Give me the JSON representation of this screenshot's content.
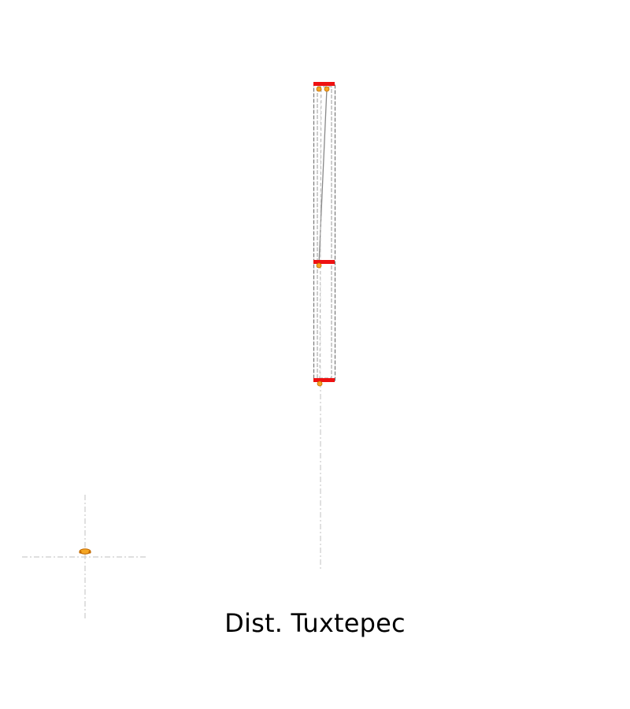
{
  "map": {
    "title": "Dist. Tuxtepec",
    "colors": {
      "background": "#ffffff",
      "crosshair": "#cccccc",
      "frame": "#777777",
      "link_line": "#888888",
      "segment_bar": "#ee1111",
      "point_fill": "#f5a623",
      "point_stroke": "#c26a00",
      "text": "#000000"
    }
  }
}
